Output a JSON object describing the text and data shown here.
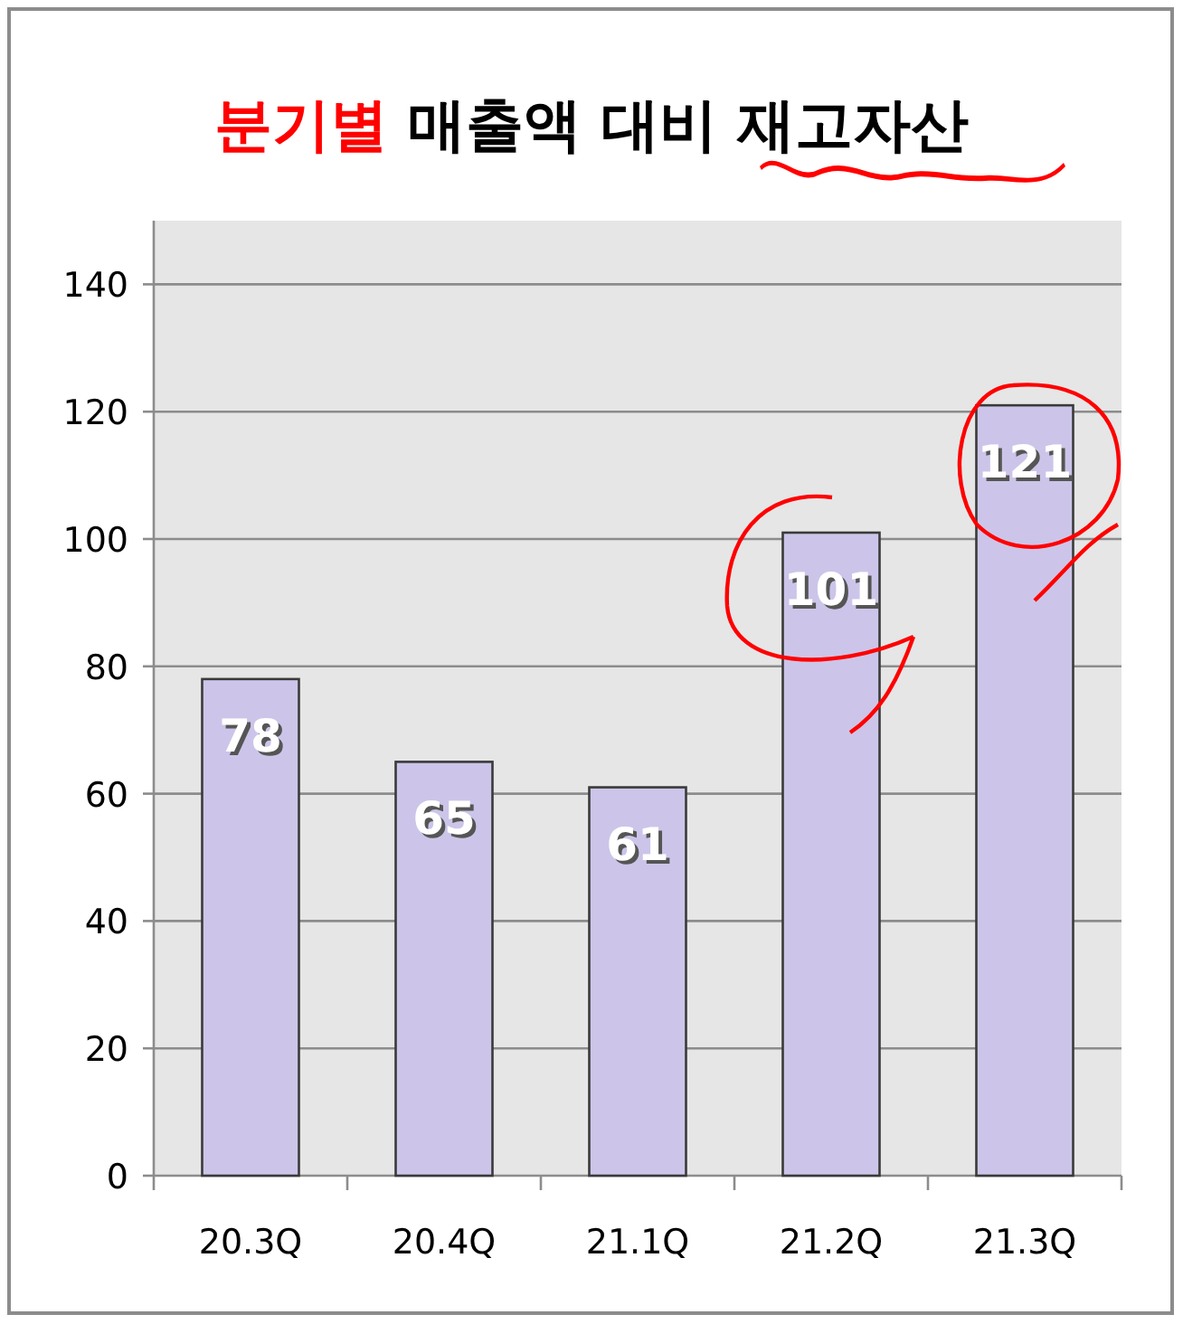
{
  "chart_data": {
    "type": "bar",
    "title": "분기별 매출액 대비 재고자산",
    "categories": [
      "20.3Q",
      "20.4Q",
      "21.1Q",
      "21.2Q",
      "21.3Q"
    ],
    "values": [
      78,
      65,
      61,
      101,
      121
    ],
    "color": "#ccc5e9",
    "ylim": [
      0,
      150
    ],
    "yticks": [
      0,
      20,
      40,
      60,
      80,
      100,
      120,
      140
    ],
    "grid": "y",
    "data_labels": true
  }
}
